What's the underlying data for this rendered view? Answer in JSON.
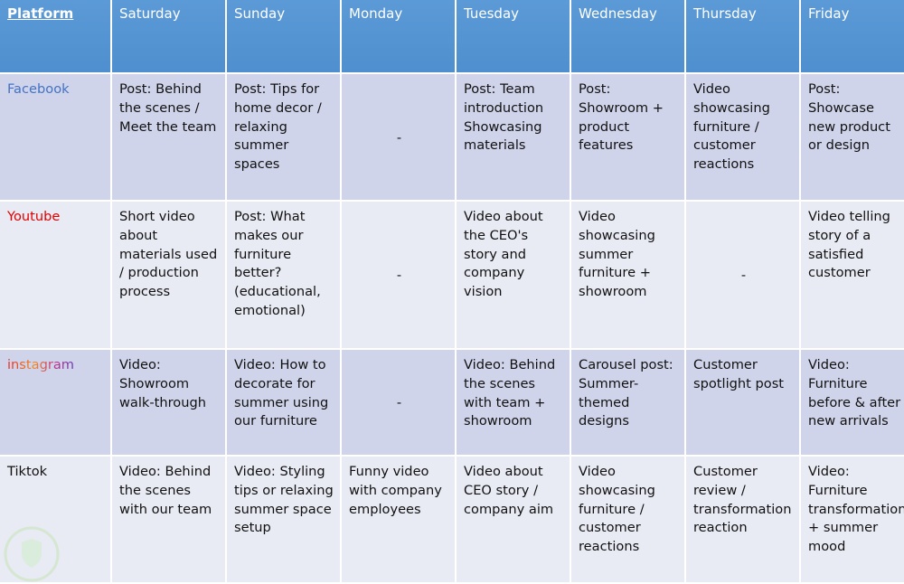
{
  "table": {
    "header": [
      "Platform",
      "Saturday",
      "Sunday",
      "Monday",
      "Tuesday",
      "Wednesday",
      "Thursday",
      "Friday"
    ],
    "rows": [
      [
        "Facebook",
        "Post: Behind the scenes / Meet the team",
        "Post: Tips for home decor / relaxing summer spaces",
        "-",
        "Post: Team introduction Showcasing materials",
        "Post: Showroom + product features",
        "Video showcasing furniture / customer reactions",
        "Post: Showcase new product or design"
      ],
      [
        "Youtube",
        "Short video about materials used / production process",
        "Post: What makes our furniture better? (educational, emotional)",
        "-",
        "Video about the CEO's story and company vision",
        "Video showcasing summer furniture + showroom",
        "-",
        "Video telling story of a satisfied customer"
      ],
      [
        "instagram",
        "Video: Showroom walk-through",
        "Video: How to decorate for summer using our furniture",
        "-",
        "Video: Behind the scenes with team + showroom",
        "Carousel post: Summer-themed designs",
        "Customer spotlight post",
        "Video: Furniture before & after new arrivals"
      ],
      [
        "Tiktok",
        "Video: Behind the scenes with our team",
        "Video: Styling tips or relaxing summer space setup",
        "Funny video with company employees",
        "Video about CEO story / company aim",
        "Video showcasing furniture / customer reactions",
        "Customer review / transformation reaction",
        "Video: Furniture transformation + summer mood"
      ]
    ]
  }
}
